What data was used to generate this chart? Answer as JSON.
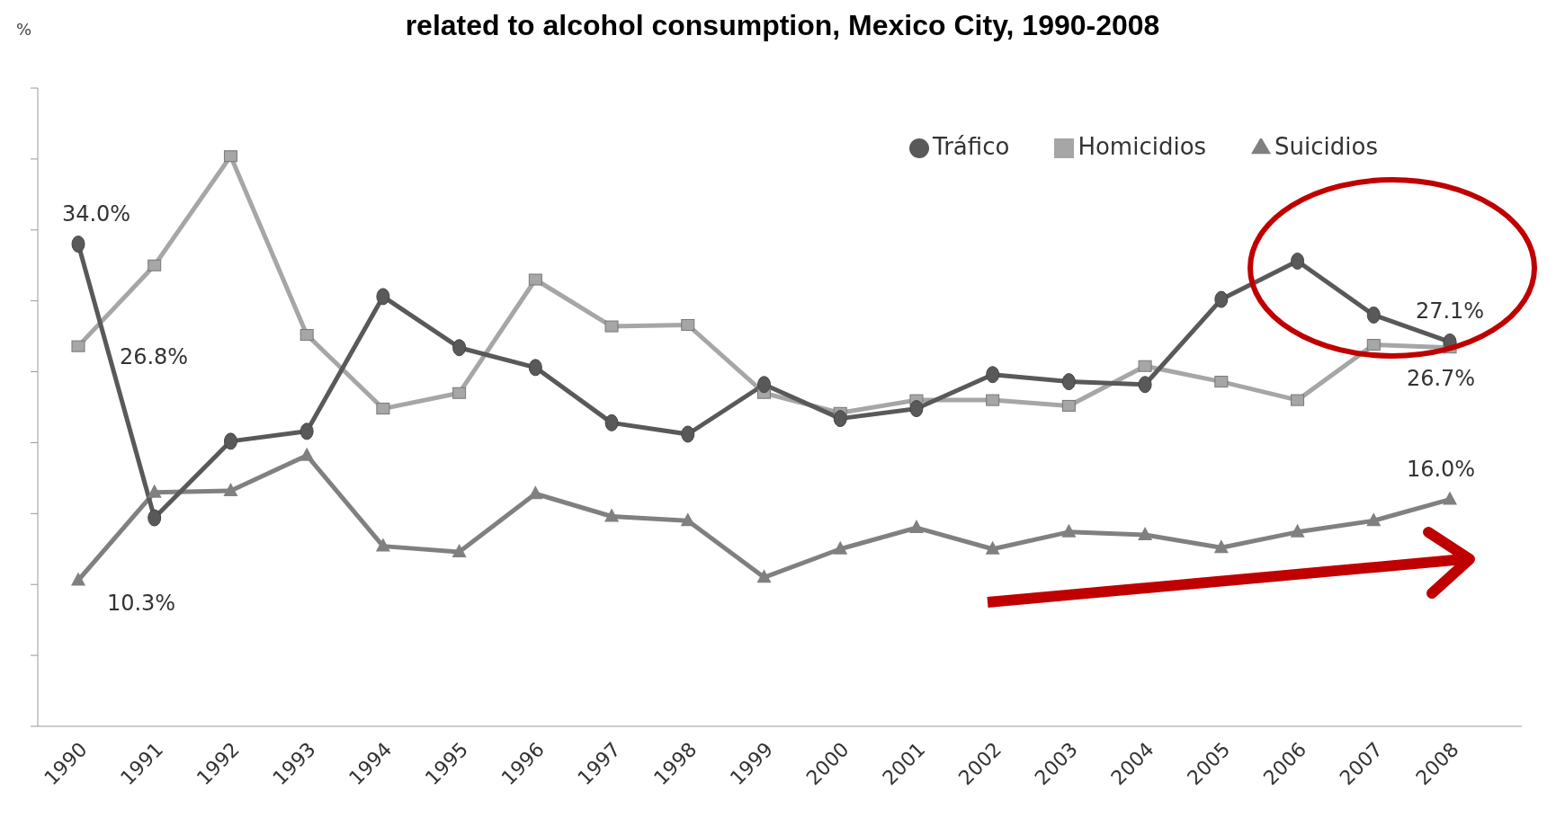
{
  "chart_data": {
    "type": "line",
    "title": "related to alcohol consumption, Mexico City, 1990-2008",
    "ylabel": "%",
    "categories": [
      "1990",
      "1991",
      "1992",
      "1993",
      "1994",
      "1995",
      "1996",
      "1997",
      "1998",
      "1999",
      "2000",
      "2001",
      "2002",
      "2003",
      "2004",
      "2005",
      "2006",
      "2007",
      "2008"
    ],
    "ylim": [
      0,
      45
    ],
    "yticks": [
      {
        "value": 0,
        "label": null
      },
      {
        "value": 5,
        "label": null
      },
      {
        "value": 10,
        "label": null
      },
      {
        "value": 15,
        "label": null
      },
      {
        "value": 20,
        "label": null
      },
      {
        "value": 25,
        "label": null
      },
      {
        "value": 30,
        "label": null
      },
      {
        "value": 35,
        "label": null
      },
      {
        "value": 40,
        "label": null
      },
      {
        "value": 45,
        "label": null
      }
    ],
    "tick_labels": "x",
    "grid": false,
    "legend": "top right",
    "line_style": "solid",
    "series": [
      {
        "name": "Tráfico",
        "color": "#595959",
        "marker": "circle",
        "values": [
          34.0,
          14.7,
          20.1,
          20.8,
          30.3,
          26.7,
          25.3,
          21.4,
          20.6,
          24.1,
          21.7,
          22.4,
          24.8,
          24.3,
          24.1,
          30.1,
          32.8,
          29.0,
          27.1
        ],
        "value_labels": [
          "34.0%",
          null,
          null,
          null,
          null,
          null,
          null,
          null,
          null,
          null,
          null,
          null,
          null,
          null,
          null,
          null,
          null,
          null,
          "27.1%"
        ]
      },
      {
        "name": "Homicidios",
        "color": "#a6a6a6",
        "marker": "square",
        "values": [
          26.8,
          32.5,
          40.2,
          27.6,
          22.4,
          23.5,
          31.5,
          28.2,
          28.3,
          23.5,
          22.1,
          23.0,
          23.0,
          22.6,
          25.4,
          24.3,
          23.0,
          26.9,
          26.7
        ],
        "value_labels": [
          "26.8%",
          null,
          null,
          null,
          null,
          null,
          null,
          null,
          null,
          null,
          null,
          null,
          null,
          null,
          null,
          null,
          null,
          null,
          "26.7%"
        ]
      },
      {
        "name": "Suicidios",
        "color": "#808080",
        "marker": "triangle",
        "values": [
          10.3,
          16.5,
          16.6,
          19.1,
          12.7,
          12.3,
          16.4,
          14.8,
          14.5,
          10.5,
          12.5,
          14.0,
          12.5,
          13.7,
          13.5,
          12.6,
          13.7,
          14.5,
          16.0
        ],
        "value_labels": [
          "10.3%",
          null,
          null,
          null,
          null,
          null,
          null,
          null,
          null,
          null,
          null,
          null,
          null,
          null,
          null,
          null,
          null,
          null,
          "16.0%"
        ]
      }
    ]
  }
}
